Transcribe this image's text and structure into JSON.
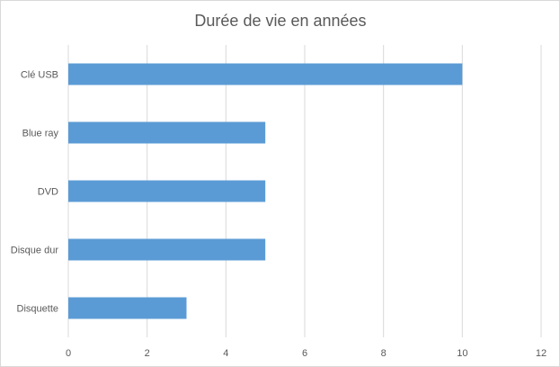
{
  "chart_data": {
    "type": "bar",
    "orientation": "horizontal",
    "title": "Durée de vie en années",
    "categories": [
      "Clé USB",
      "Blue ray",
      "DVD",
      "Disque dur",
      "Disquette"
    ],
    "values": [
      10,
      5,
      5,
      5,
      3
    ],
    "xlim": [
      0,
      12
    ],
    "xticks": [
      0,
      2,
      4,
      6,
      8,
      10,
      12
    ],
    "xlabel": "",
    "ylabel": "",
    "grid": true,
    "legend": "none",
    "bar_color": "#5b9bd5",
    "gridline_color": "#d9d9d9",
    "text_color": "#595959"
  }
}
